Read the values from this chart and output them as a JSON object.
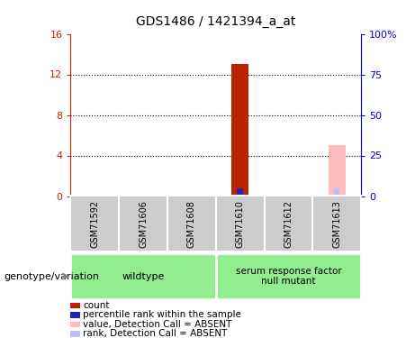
{
  "title": "GDS1486 / 1421394_a_at",
  "samples": [
    "GSM71592",
    "GSM71606",
    "GSM71608",
    "GSM71610",
    "GSM71612",
    "GSM71613"
  ],
  "count_values": [
    0,
    0,
    0.05,
    13.0,
    0,
    0
  ],
  "percentile_values": [
    0,
    0,
    0,
    5.0,
    1.0,
    0
  ],
  "absent_value_values": [
    0,
    0,
    0,
    0,
    0,
    5.0
  ],
  "absent_rank_values": [
    0,
    0,
    0,
    0,
    0,
    5.0
  ],
  "ylim_left": [
    0,
    16
  ],
  "ylim_right": [
    0,
    100
  ],
  "yticks_left": [
    0,
    4,
    8,
    12,
    16
  ],
  "yticks_right": [
    0,
    25,
    50,
    75,
    100
  ],
  "ytick_labels_right": [
    "0",
    "25",
    "50",
    "75",
    "100%"
  ],
  "left_axis_color": "#cc2200",
  "right_axis_color": "#0000cc",
  "count_color": "#bb2200",
  "percentile_color": "#2222bb",
  "absent_value_color": "#ffbbbb",
  "absent_rank_color": "#bbbbff",
  "sample_box_color": "#cccccc",
  "genotype_box_color": "#90EE90",
  "legend_items": [
    {
      "color": "#bb2200",
      "label": "count"
    },
    {
      "color": "#2222bb",
      "label": "percentile rank within the sample"
    },
    {
      "color": "#ffbbbb",
      "label": "value, Detection Call = ABSENT"
    },
    {
      "color": "#bbbbff",
      "label": "rank, Detection Call = ABSENT"
    }
  ],
  "genotype_label": "genotype/variation",
  "wildtype_label": "wildtype",
  "mutant_label": "serum response factor\nnull mutant",
  "figsize": [
    4.61,
    3.75
  ],
  "dpi": 100
}
